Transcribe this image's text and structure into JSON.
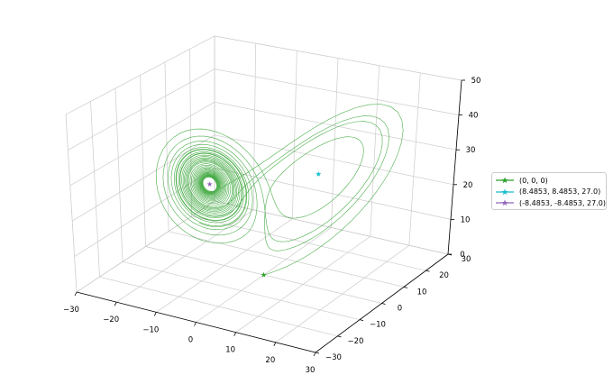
{
  "chart_data": {
    "type": "line3d",
    "title": "",
    "xlabel": "",
    "ylabel": "",
    "zlabel": "",
    "xlim": [
      -30,
      30
    ],
    "ylim": [
      -30,
      30
    ],
    "zlim": [
      0,
      50
    ],
    "xticks": [
      -30,
      -20,
      -10,
      0,
      10,
      20,
      30
    ],
    "yticks": [
      -30,
      -20,
      -10,
      0,
      10,
      20,
      30
    ],
    "zticks": [
      0,
      10,
      20,
      30,
      40,
      50
    ],
    "grid": true,
    "legend_position": "right",
    "trajectory": {
      "system": "Lorenz (sigma=10, rho=28, beta=8/3)",
      "start": [
        0.1,
        0,
        0
      ],
      "color": "#2ca02c"
    },
    "series": [
      {
        "name": "(0, 0, 0)",
        "color": "#2ca02c",
        "points": [
          [
            0,
            0,
            0
          ]
        ]
      },
      {
        "name": "(8.4853, 8.4853, 27.0)",
        "color": "#17becf",
        "points": [
          [
            8.4853,
            8.4853,
            27.0
          ]
        ]
      },
      {
        "name": "(-8.4853, -8.4853, 27.0)",
        "color": "#9467bd",
        "points": [
          [
            -8.4853,
            -8.4853,
            27.0
          ]
        ]
      }
    ]
  }
}
